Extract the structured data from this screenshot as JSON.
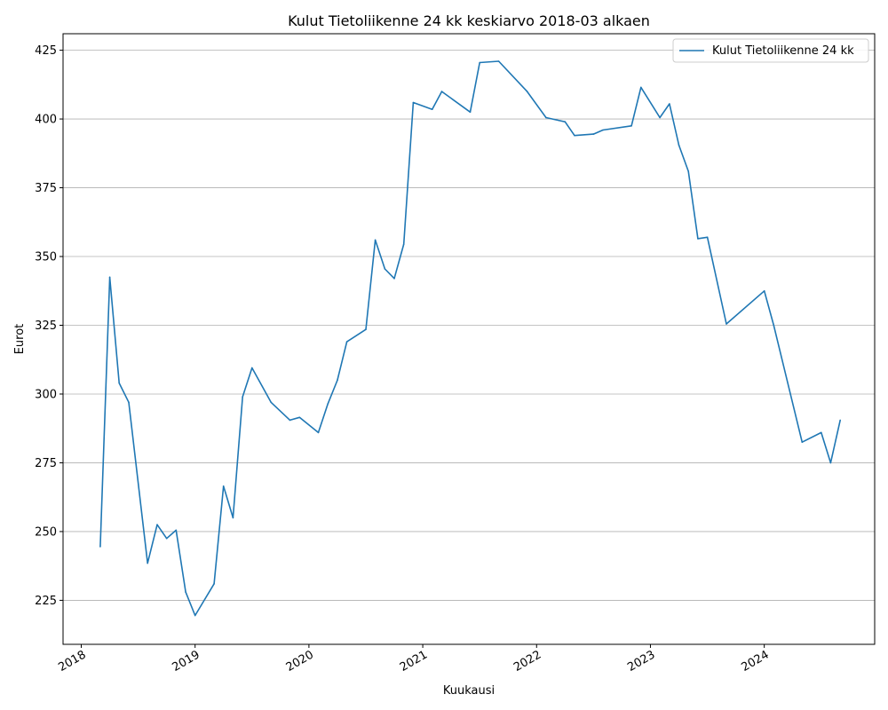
{
  "chart_data": {
    "type": "line",
    "title": "Kulut Tietoliikenne 24 kk keskiarvo 2018-03 alkaen",
    "xlabel": "Kuukausi",
    "ylabel": "Eurot",
    "xlim": [
      2017.84,
      2024.97
    ],
    "ylim": [
      209,
      431
    ],
    "xticks": [
      2018,
      2019,
      2020,
      2021,
      2022,
      2023,
      2024
    ],
    "xtick_labels": [
      "2018",
      "2019",
      "2020",
      "2021",
      "2022",
      "2023",
      "2024"
    ],
    "yticks": [
      225,
      250,
      275,
      300,
      325,
      350,
      375,
      400,
      425
    ],
    "ytick_labels": [
      "225",
      "250",
      "275",
      "300",
      "325",
      "350",
      "375",
      "400",
      "425"
    ],
    "grid": "y",
    "legend_position": "top-right",
    "colors": {
      "series": "#1f77b4",
      "grid": "#b0b0b0",
      "axes": "#000000"
    },
    "series": [
      {
        "name": "Kulut Tietoliikenne 24 kk",
        "x": [
          2018.167,
          2018.25,
          2018.333,
          2018.417,
          2018.583,
          2018.667,
          2018.75,
          2018.833,
          2018.917,
          2019.0,
          2019.167,
          2019.25,
          2019.333,
          2019.417,
          2019.5,
          2019.667,
          2019.833,
          2019.917,
          2020.083,
          2020.167,
          2020.25,
          2020.333,
          2020.5,
          2020.583,
          2020.667,
          2020.75,
          2020.833,
          2020.917,
          2021.083,
          2021.167,
          2021.417,
          2021.5,
          2021.667,
          2021.917,
          2022.083,
          2022.25,
          2022.333,
          2022.5,
          2022.583,
          2022.833,
          2022.917,
          2023.083,
          2023.167,
          2023.25,
          2023.333,
          2023.417,
          2023.5,
          2023.667,
          2024.0,
          2024.083,
          2024.333,
          2024.5,
          2024.583,
          2024.667
        ],
        "y": [
          244.5,
          342.5,
          304.0,
          297.0,
          238.5,
          252.5,
          247.5,
          250.5,
          228.0,
          219.5,
          231.0,
          266.5,
          255.0,
          299.0,
          309.5,
          297.0,
          290.5,
          291.5,
          286.0,
          296.5,
          305.0,
          319.0,
          323.5,
          356.0,
          345.5,
          342.0,
          354.5,
          406.0,
          403.5,
          410.0,
          402.5,
          420.5,
          421.0,
          410.0,
          400.5,
          399.0,
          394.0,
          394.5,
          396.0,
          397.5,
          411.5,
          400.5,
          405.5,
          390.5,
          381.0,
          356.5,
          357.0,
          325.5,
          337.5,
          325.0,
          282.5,
          286.0,
          275.0,
          290.5
        ]
      }
    ]
  }
}
